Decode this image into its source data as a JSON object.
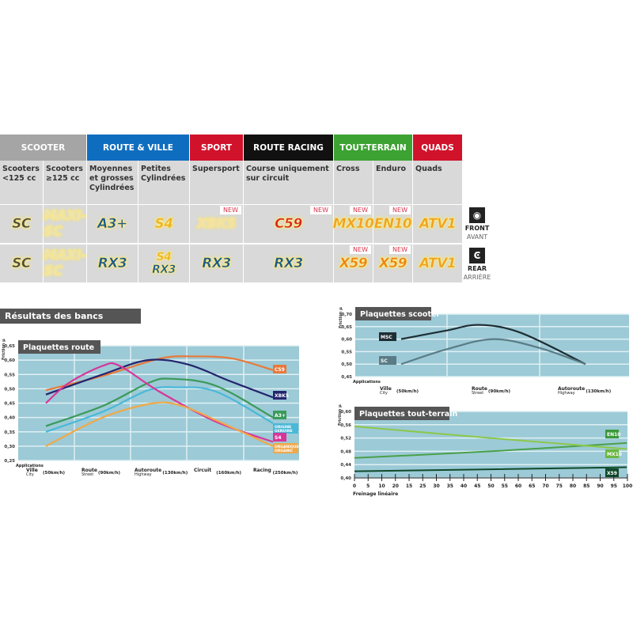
{
  "table": {
    "categories": [
      {
        "label": "SCOOTER",
        "color": "#a5a5a5"
      },
      {
        "label": "ROUTE & VILLE",
        "color": "#0f6dbf"
      },
      {
        "label": "SPORT",
        "color": "#d0122a"
      },
      {
        "label": "ROUTE RACING",
        "color": "#111111"
      },
      {
        "label": "TOUT-TERRAIN",
        "color": "#3ca232"
      },
      {
        "label": "QUADS",
        "color": "#d0122a"
      }
    ],
    "columns": [
      {
        "label": "Scooters <125 cc",
        "front": "SC",
        "rear": "SC"
      },
      {
        "label": "Scooters ≥125 cc",
        "front": "MAXI-SC",
        "rear": "MAXI-SC"
      },
      {
        "label": "Moyennes et grosses Cylindrées",
        "front": "A3+",
        "rear": "RX3"
      },
      {
        "label": "Petites Cylindrées",
        "front": "S4",
        "rear": "S4 RX3"
      },
      {
        "label": "Supersport",
        "front": "XBK5",
        "rear": "RX3",
        "front_new": "NEW"
      },
      {
        "label": "Course uniquement sur circuit",
        "front": "C59",
        "rear": "RX3",
        "front_new": "NEW"
      },
      {
        "label": "Cross",
        "front": "MX10",
        "rear": "X59",
        "front_new": "NEW",
        "rear_new": "NEW"
      },
      {
        "label": "Enduro",
        "front": "EN10",
        "rear": "X59",
        "front_new": "NEW",
        "rear_new": "NEW"
      },
      {
        "label": "Quads",
        "front": "ATV1",
        "rear": "ATV1"
      }
    ],
    "front": {
      "label": "FRONT",
      "sub": "AVANT"
    },
    "rear": {
      "label": "REAR",
      "sub": "ARRIÈRE"
    }
  },
  "section_title": "Résultats des bancs d'essais",
  "chart_data": [
    {
      "type": "line",
      "title": "Plaquettes route",
      "ylabel": "Friction µ",
      "xlabel": "Applications",
      "ylim": [
        0.25,
        0.65
      ],
      "yticks": [
        "0,65",
        "0,60",
        "0,55",
        "0,50",
        "0,45",
        "0,40",
        "0,35",
        "0,30",
        "0,25"
      ],
      "categories": [
        {
          "main": "Ville",
          "sub": "City",
          "speed": "(50km/h)"
        },
        {
          "main": "Route",
          "sub": "Street",
          "speed": "(90km/h)"
        },
        {
          "main": "Autoroute",
          "sub": "Highway",
          "speed": "(130km/h)"
        },
        {
          "main": "Circuit",
          "sub": "",
          "speed": "(160km/h)"
        },
        {
          "main": "Racing",
          "sub": "",
          "speed": "(250km/h)"
        }
      ],
      "grid": true,
      "series": [
        {
          "name": "C59",
          "color": "#e8793a",
          "points": [
            [
              0,
              0.495
            ],
            [
              1,
              0.545
            ],
            [
              2,
              0.605
            ],
            [
              2.6,
              0.613
            ],
            [
              3.3,
              0.605
            ],
            [
              4,
              0.565
            ]
          ]
        },
        {
          "name": "XBK5",
          "color": "#23246e",
          "points": [
            [
              0,
              0.48
            ],
            [
              1,
              0.55
            ],
            [
              1.8,
              0.6
            ],
            [
              2.5,
              0.585
            ],
            [
              3.2,
              0.53
            ],
            [
              4,
              0.47
            ]
          ]
        },
        {
          "name": "A3+",
          "color": "#3a9a5a",
          "points": [
            [
              0,
              0.37
            ],
            [
              1,
              0.44
            ],
            [
              1.8,
              0.52
            ],
            [
              2.2,
              0.535
            ],
            [
              3,
              0.51
            ],
            [
              4,
              0.4
            ]
          ]
        },
        {
          "name": "ORIGINE GENUINE",
          "color": "#4ab8d8",
          "points": [
            [
              0,
              0.35
            ],
            [
              1,
              0.42
            ],
            [
              1.8,
              0.495
            ],
            [
              2.3,
              0.505
            ],
            [
              3,
              0.49
            ],
            [
              4,
              0.38
            ]
          ]
        },
        {
          "name": "S4",
          "color": "#d8359a",
          "points": [
            [
              0,
              0.45
            ],
            [
              0.4,
              0.52
            ],
            [
              1,
              0.58
            ],
            [
              1.3,
              0.58
            ],
            [
              2,
              0.49
            ],
            [
              3,
              0.385
            ],
            [
              4,
              0.315
            ]
          ]
        },
        {
          "name": "ORGANIQUE ORGANIC",
          "color": "#f0a848",
          "points": [
            [
              0,
              0.3
            ],
            [
              1,
              0.4
            ],
            [
              1.9,
              0.45
            ],
            [
              2.4,
              0.44
            ],
            [
              3,
              0.39
            ],
            [
              4,
              0.3
            ]
          ]
        }
      ]
    },
    {
      "type": "line",
      "title": "Plaquettes scooter",
      "ylabel": "Friction µ",
      "xlabel": "Applications",
      "ylim": [
        0.45,
        0.7
      ],
      "yticks": [
        "0,70",
        "0,65",
        "0,60",
        "0,55",
        "0,50",
        "0,45"
      ],
      "categories": [
        {
          "main": "Ville",
          "sub": "City",
          "speed": "(50km/h)"
        },
        {
          "main": "Route",
          "sub": "Street",
          "speed": "(90km/h)"
        },
        {
          "main": "Autoroute",
          "sub": "Highway",
          "speed": "(130km/h)"
        }
      ],
      "grid": true,
      "series": [
        {
          "name": "MSC",
          "color": "#1e2e34",
          "points": [
            [
              0,
              0.6
            ],
            [
              0.5,
              0.635
            ],
            [
              0.85,
              0.657
            ],
            [
              1.3,
              0.625
            ],
            [
              2,
              0.5
            ]
          ]
        },
        {
          "name": "SC",
          "color": "#5a7c86",
          "points": [
            [
              0,
              0.5
            ],
            [
              0.5,
              0.56
            ],
            [
              1,
              0.6
            ],
            [
              1.5,
              0.565
            ],
            [
              2,
              0.5
            ]
          ]
        }
      ]
    },
    {
      "type": "line",
      "title": "Plaquettes tout-terrain",
      "ylabel": "Friction µ",
      "xlabel": "Freinage linéaire",
      "ylim": [
        0.4,
        0.6
      ],
      "xlim": [
        0,
        100
      ],
      "yticks": [
        "0,60",
        "0,56",
        "0,52",
        "0,48",
        "0,44",
        "0,40"
      ],
      "xticks": [
        "0",
        "5",
        "10",
        "20",
        "15",
        "25",
        "30",
        "35",
        "40",
        "45",
        "50",
        "55",
        "60",
        "65",
        "70",
        "75",
        "80",
        "85",
        "90",
        "95",
        "100"
      ],
      "grid": true,
      "series": [
        {
          "name": "EN10",
          "color": "#4aa04a",
          "points": [
            [
              0,
              0.46
            ],
            [
              50,
              0.48
            ],
            [
              100,
              0.505
            ]
          ]
        },
        {
          "name": "MX10",
          "color": "#8cc84a",
          "points": [
            [
              0,
              0.555
            ],
            [
              50,
              0.52
            ],
            [
              100,
              0.487
            ]
          ]
        },
        {
          "name": "X59",
          "color": "#0f4a2a",
          "points": [
            [
              0,
              0.42
            ],
            [
              100,
              0.432
            ]
          ]
        }
      ]
    }
  ]
}
